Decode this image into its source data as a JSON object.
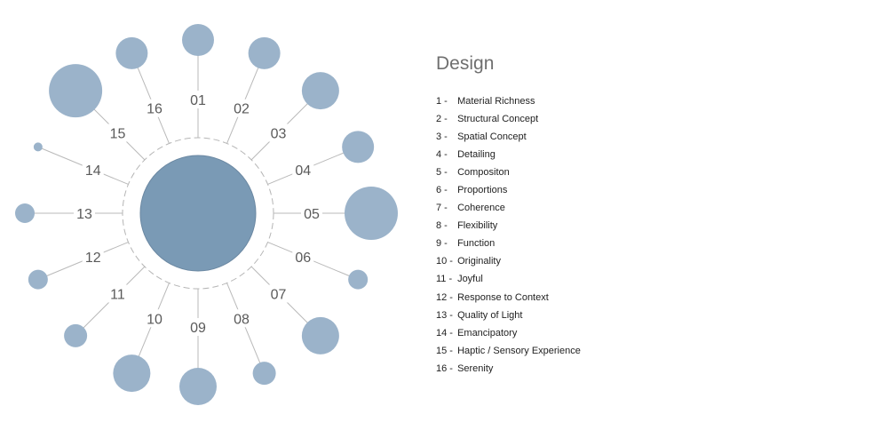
{
  "diagram": {
    "hub_color": "#7a9ab5",
    "node_color": "#9bb3ca",
    "spokes": [
      {
        "label": "01",
        "weight": 4
      },
      {
        "label": "02",
        "weight": 4
      },
      {
        "label": "03",
        "weight": 5
      },
      {
        "label": "04",
        "weight": 4
      },
      {
        "label": "05",
        "weight": 6
      },
      {
        "label": "06",
        "weight": 1
      },
      {
        "label": "07",
        "weight": 5
      },
      {
        "label": "08",
        "weight": 2
      },
      {
        "label": "09",
        "weight": 5
      },
      {
        "label": "10",
        "weight": 5
      },
      {
        "label": "11",
        "weight": 2
      },
      {
        "label": "12",
        "weight": 1
      },
      {
        "label": "13",
        "weight": 1
      },
      {
        "label": "14",
        "weight": 0
      },
      {
        "label": "15",
        "weight": 6
      },
      {
        "label": "16",
        "weight": 4
      }
    ]
  },
  "legend": {
    "title": "Design",
    "items": [
      {
        "num": "1 -",
        "label": "Material Richness"
      },
      {
        "num": "2 -",
        "label": "Structural Concept"
      },
      {
        "num": "3 -",
        "label": "Spatial Concept"
      },
      {
        "num": "4 -",
        "label": "Detailing"
      },
      {
        "num": "5 -",
        "label": "Compositon"
      },
      {
        "num": "6 -",
        "label": "Proportions"
      },
      {
        "num": "7 -",
        "label": "Coherence"
      },
      {
        "num": "8 -",
        "label": "Flexibility"
      },
      {
        "num": "9 -",
        "label": "Function"
      },
      {
        "num": "10 -",
        "label": "Originality"
      },
      {
        "num": "11 -",
        "label": "Joyful"
      },
      {
        "num": "12 -",
        "label": "Response to Context"
      },
      {
        "num": "13 -",
        "label": "Quality of Light"
      },
      {
        "num": "14 -",
        "label": "Emancipatory"
      },
      {
        "num": "15 -",
        "label": "Haptic / Sensory Experience"
      },
      {
        "num": "16 -",
        "label": "Serenity"
      }
    ]
  }
}
